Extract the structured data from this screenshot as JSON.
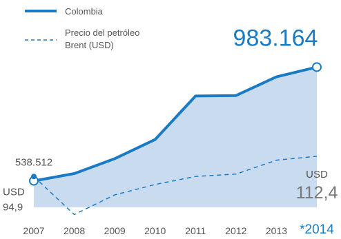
{
  "chart_data": {
    "type": "line",
    "categories": [
      "2007",
      "2008",
      "2009",
      "2010",
      "2011",
      "2012",
      "2013",
      "*2014"
    ],
    "series": [
      {
        "name": "Colombia",
        "values": [
          538512,
          567000,
          625000,
          700000,
          870000,
          872000,
          945000,
          983164
        ],
        "style": "solid",
        "color": "#1a7bc4",
        "fill": "#c9dcef"
      },
      {
        "name": "Precio del petróleo Brent (USD)",
        "values": [
          94.9,
          62,
          79,
          88,
          95,
          97,
          109,
          112.4
        ],
        "style": "dashed",
        "color": "#1a7bc4"
      }
    ],
    "ylim": [
      330000,
      1030000
    ],
    "ylim_secondary": [
      45,
      200
    ],
    "annotations": {
      "start_value": "538.512",
      "end_value": "983.164",
      "oil_start_unit": "USD",
      "oil_start_value": "94,9",
      "oil_end_unit": "USD",
      "oil_end_value": "112,4"
    },
    "xlabel": "",
    "ylabel": ""
  }
}
